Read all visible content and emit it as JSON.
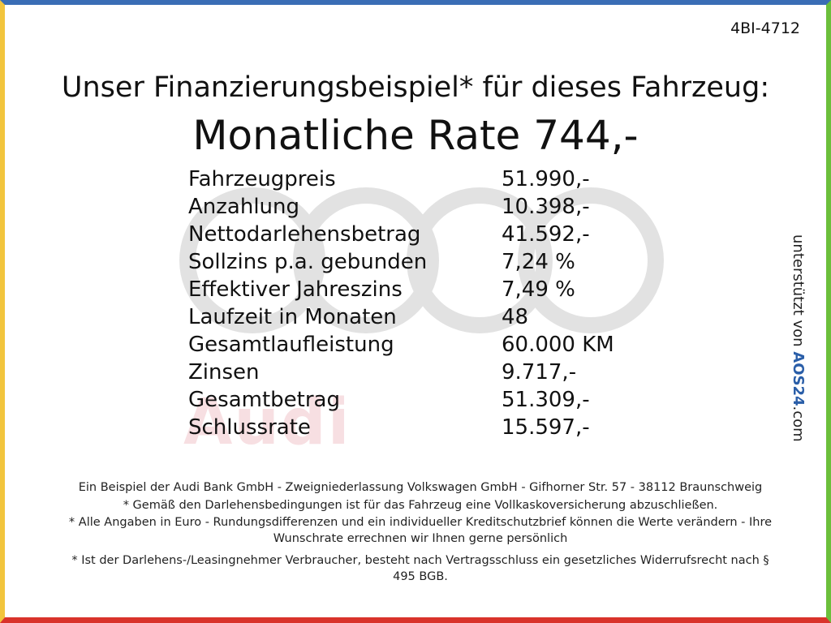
{
  "code": "4BI-4712",
  "header": {
    "title": "Unser Finanzierungsbeispiel* für dieses Fahrzeug:",
    "rate": "Monatliche Rate 744,-"
  },
  "watermark": "Audi",
  "table": {
    "rows": [
      [
        "Fahrzeugpreis",
        "51.990,-"
      ],
      [
        "Anzahlung",
        "10.398,-"
      ],
      [
        "Nettodarlehensbetrag",
        "41.592,-"
      ],
      [
        "Sollzins p.a. gebunden",
        "7,24 %"
      ],
      [
        "Effektiver Jahreszins",
        "7,49 %"
      ],
      [
        "Laufzeit in Monaten",
        "48"
      ],
      [
        "Gesamtlaufleistung",
        "60.000 KM"
      ],
      [
        "Zinsen",
        "9.717,-"
      ],
      [
        "Gesamtbetrag",
        "51.309,-"
      ],
      [
        "Schlussrate",
        "15.597,-"
      ]
    ]
  },
  "side": {
    "prefix": "unterstützt von",
    "logo": "AOS24",
    "suffix": ".com"
  },
  "footer": [
    "Ein Beispiel der Audi Bank GmbH - Zweigniederlassung Volkswagen GmbH - Gifhorner Str. 57 - 38112 Braunschweig",
    "* Gemäß den Darlehensbedingungen ist für das Fahrzeug eine Vollkaskoversicherung abzuschließen.",
    "* Alle Angaben in Euro - Rundungsdifferenzen und ein individueller Kreditschutzbrief können die Werte verändern - Ihre Wunschrate errechnen wir Ihnen gerne persönlich",
    "* Ist der Darlehens-/Leasingnehmer Verbraucher, besteht nach Vertragsschluss ein gesetzliches Widerrufsrecht nach § 495 BGB."
  ]
}
